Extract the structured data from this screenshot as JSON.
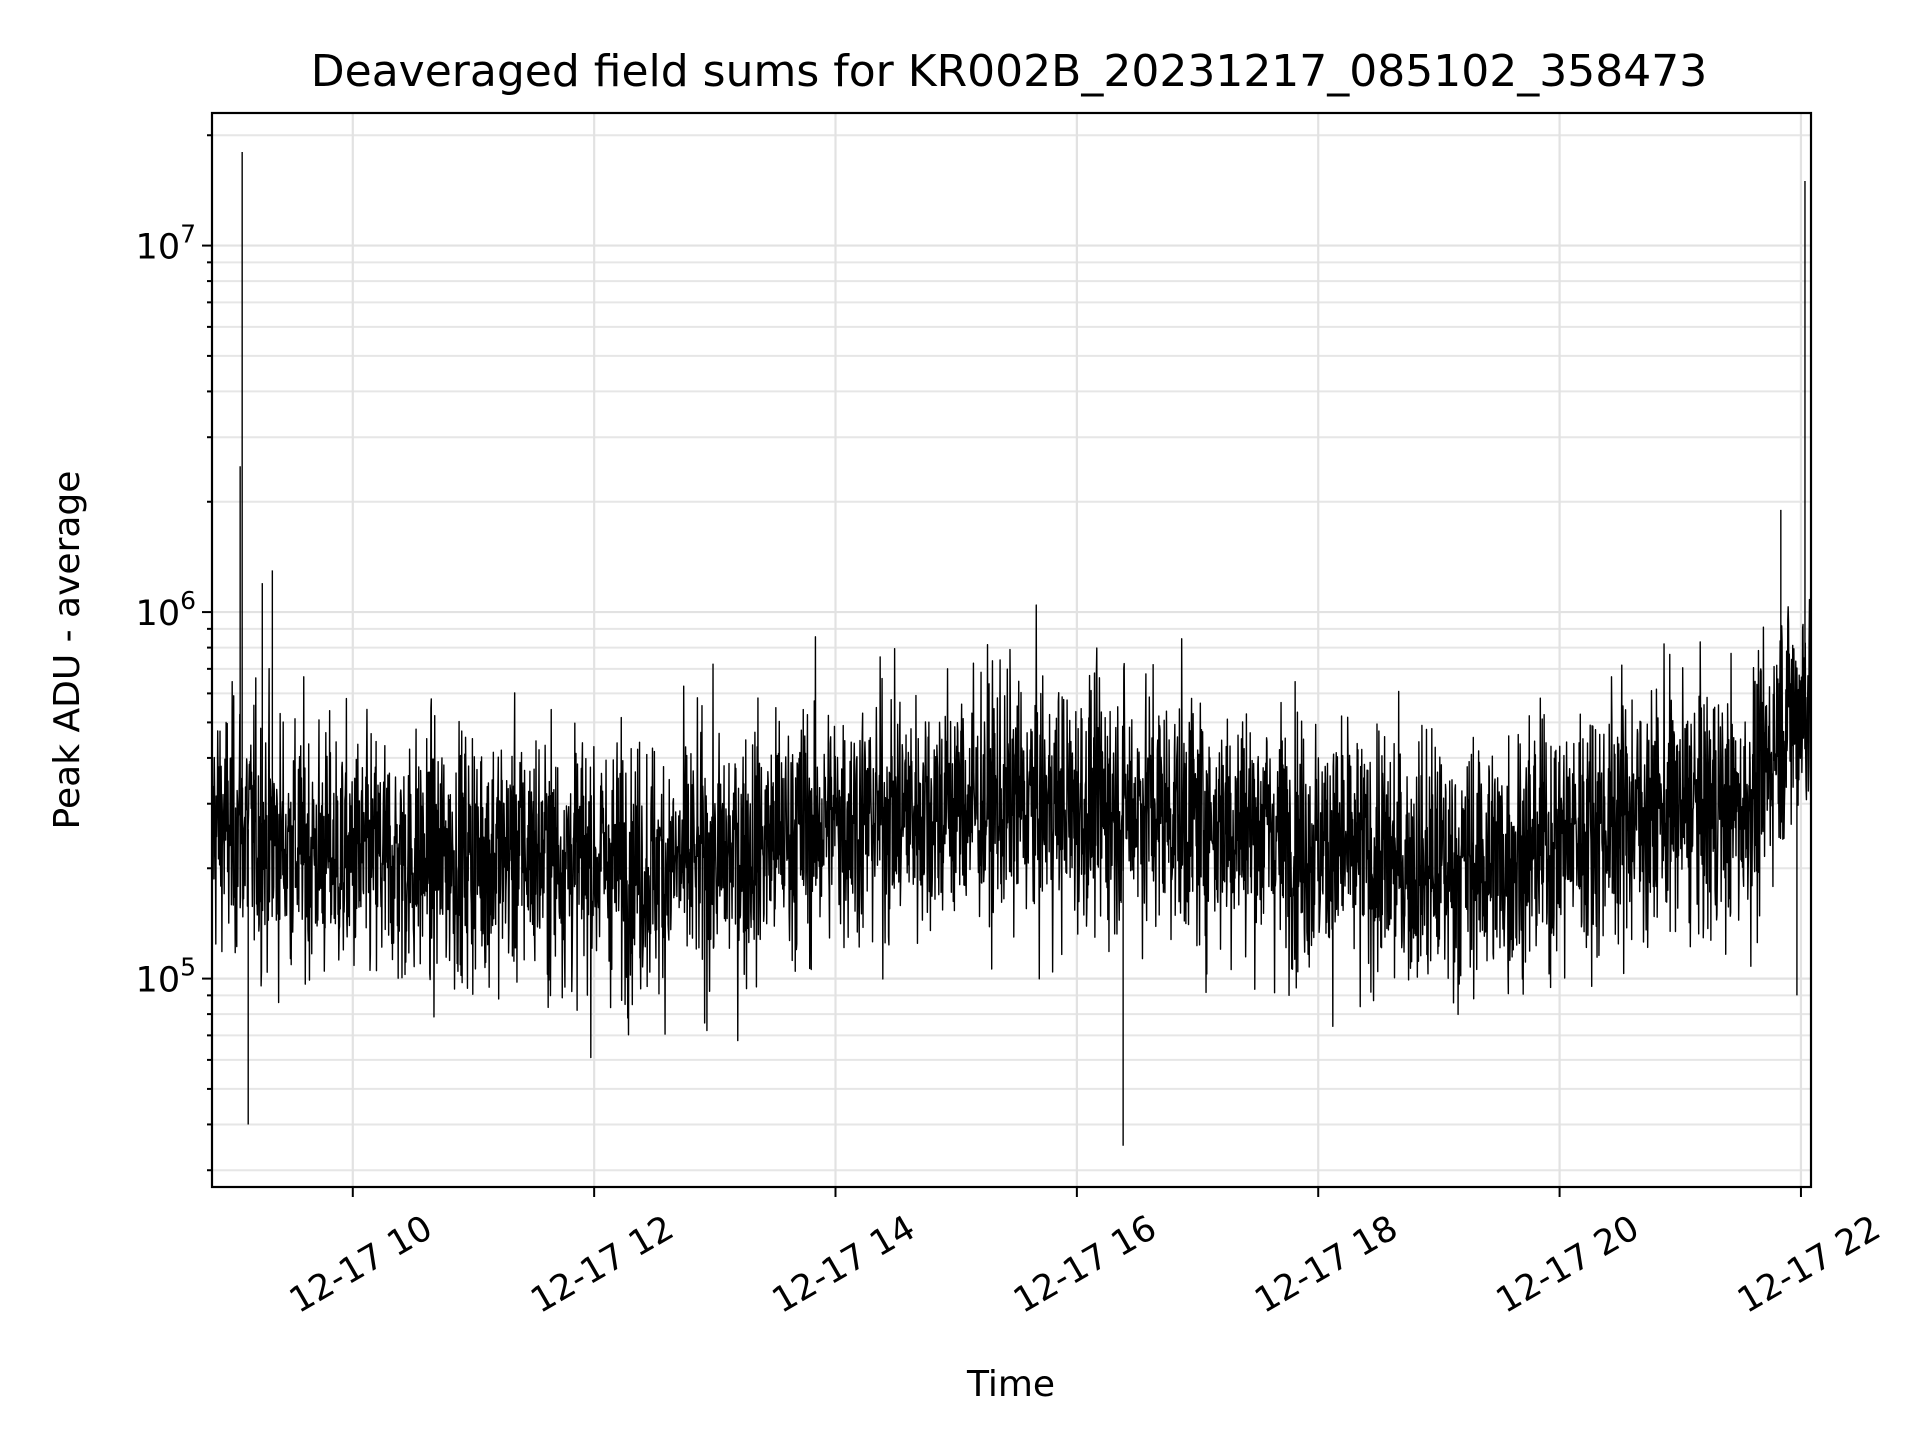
{
  "chart_data": {
    "type": "line",
    "title": "Deaveraged field sums for KR002B_20231217_085102_358473",
    "xlabel": "Time",
    "ylabel": "Peak ADU - average",
    "x_axis": {
      "scale": "time",
      "range": [
        "2023-12-17 08:50",
        "2023-12-17 22:05"
      ],
      "ticks": [
        "12-17 10",
        "12-17 12",
        "12-17 14",
        "12-17 16",
        "12-17 18",
        "12-17 20",
        "12-17 22"
      ],
      "tick_times": [
        "2023-12-17 10:00",
        "2023-12-17 12:00",
        "2023-12-17 14:00",
        "2023-12-17 16:00",
        "2023-12-17 18:00",
        "2023-12-17 20:00",
        "2023-12-17 22:00"
      ],
      "tick_rotation_deg": 30
    },
    "y_axis": {
      "scale": "log",
      "range": [
        27000,
        23000000
      ],
      "ticks": [
        {
          "base": "10",
          "exp": "5",
          "value": 100000
        },
        {
          "base": "10",
          "exp": "6",
          "value": 1000000
        },
        {
          "base": "10",
          "exp": "7",
          "value": 10000000
        }
      ]
    },
    "grid": true,
    "line_color": "#000000",
    "series": [
      {
        "x": [
          "2023-12-17 08:50",
          "2023-12-17 09:00",
          "2023-12-17 09:04",
          "2023-12-17 09:05",
          "2023-12-17 09:06",
          "2023-12-17 09:15",
          "2023-12-17 09:30",
          "2023-12-17 10:00",
          "2023-12-17 10:30",
          "2023-12-17 11:00",
          "2023-12-17 11:30",
          "2023-12-17 12:00",
          "2023-12-17 12:30",
          "2023-12-17 13:00",
          "2023-12-17 13:30",
          "2023-12-17 14:00",
          "2023-12-17 14:30",
          "2023-12-17 15:00",
          "2023-12-17 15:30",
          "2023-12-17 16:00",
          "2023-12-17 16:30",
          "2023-12-17 17:00",
          "2023-12-17 17:30",
          "2023-12-17 18:00",
          "2023-12-17 18:30",
          "2023-12-17 19:00",
          "2023-12-17 19:30",
          "2023-12-17 20:00",
          "2023-12-17 20:30",
          "2023-12-17 21:00",
          "2023-12-17 21:30",
          "2023-12-17 21:40",
          "2023-12-17 21:50",
          "2023-12-17 22:00",
          "2023-12-17 22:03",
          "2023-12-17 22:05"
        ],
        "baseline": [
          270000,
          250000,
          260000,
          260000,
          260000,
          240000,
          230000,
          210000,
          210000,
          220000,
          220000,
          210000,
          200000,
          210000,
          240000,
          270000,
          280000,
          300000,
          300000,
          290000,
          300000,
          270000,
          260000,
          230000,
          210000,
          200000,
          210000,
          240000,
          280000,
          290000,
          290000,
          330000,
          500000,
          560000,
          600000,
          600000
        ],
        "spikes": [
          {
            "x": "2023-12-17 09:04",
            "y": 2500000
          },
          {
            "x": "2023-12-17 09:05",
            "y": 18000000
          },
          {
            "x": "2023-12-17 09:08",
            "y": 40000
          },
          {
            "x": "2023-12-17 09:15",
            "y": 1200000
          },
          {
            "x": "2023-12-17 09:20",
            "y": 1300000
          },
          {
            "x": "2023-12-17 16:23",
            "y": 35000
          },
          {
            "x": "2023-12-17 21:50",
            "y": 1900000
          },
          {
            "x": "2023-12-17 21:58",
            "y": 90000
          },
          {
            "x": "2023-12-17 22:02",
            "y": 15000000
          }
        ]
      }
    ]
  }
}
